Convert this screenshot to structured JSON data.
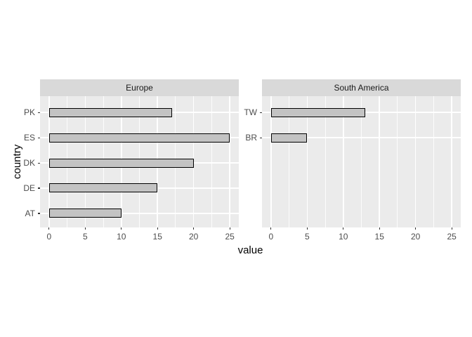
{
  "chart_data": {
    "type": "bar",
    "orientation": "horizontal",
    "title": "",
    "xlabel": "value",
    "ylabel": "country",
    "x_ticks": [
      0,
      5,
      10,
      15,
      20,
      25
    ],
    "x_minor_ticks": [
      2.5,
      7.5,
      12.5,
      17.5,
      22.5
    ],
    "xlim": [
      -1.25,
      26.25
    ],
    "y_slots": 5,
    "grid": true,
    "legend": "none",
    "facets": [
      {
        "label": "Europe",
        "categories": [
          "PK",
          "ES",
          "DK",
          "DE",
          "AT"
        ],
        "values": [
          17,
          25,
          20,
          15,
          10
        ],
        "row_positions": [
          5,
          4,
          3,
          2,
          1
        ]
      },
      {
        "label": "South America",
        "categories": [
          "TW",
          "BR"
        ],
        "values": [
          13,
          5
        ],
        "row_positions": [
          5,
          4
        ]
      }
    ],
    "colors": {
      "panel_bg": "#EBEBEB",
      "strip_bg": "#D9D9D9",
      "grid": "#FFFFFF",
      "bar_fill": "#C3C3C3",
      "bar_stroke": "#000000",
      "axis_text": "#4D4D4D",
      "tick_mark": "#333333",
      "title_text": "#000000"
    }
  }
}
